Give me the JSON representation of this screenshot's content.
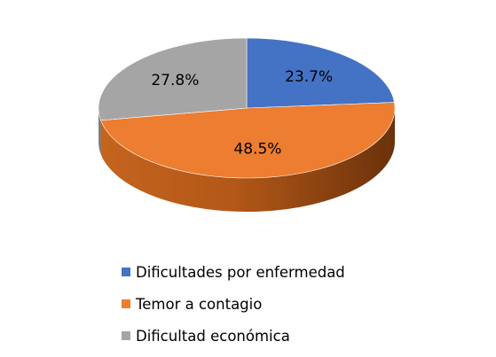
{
  "chart_data": {
    "type": "pie",
    "style": "3d",
    "categories": [
      "Dificultades por enfermedad",
      "Temor a contagio",
      "Dificultad económica"
    ],
    "values": [
      23.7,
      48.5,
      27.8
    ],
    "data_labels": [
      "23.7%",
      "48.5%",
      "27.8%"
    ],
    "colors": [
      "#4472C4",
      "#ED7D31",
      "#A5A5A5"
    ],
    "title": "",
    "legend_position": "bottom"
  }
}
